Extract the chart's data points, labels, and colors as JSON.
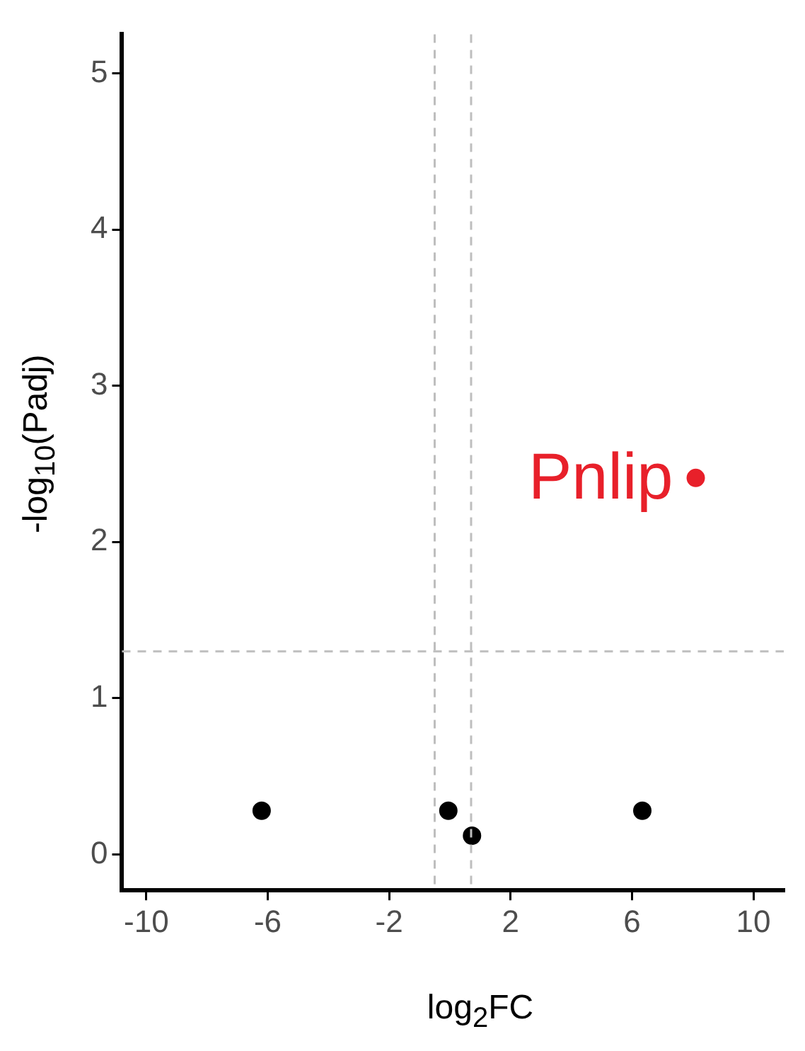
{
  "chart_data": {
    "type": "scatter",
    "xlabel": "log$_{2}$FC",
    "ylabel": "-log$_{10}$(Padj)",
    "series": [
      {
        "color": "#000000",
        "x": [
          -6.2,
          -0.05,
          0.73,
          6.34
        ],
        "values": [
          0.28,
          0.28,
          0.12,
          0.28
        ]
      },
      {
        "color": "#e8202a",
        "x": [
          8.1
        ],
        "values": [
          2.41
        ]
      }
    ],
    "xlim": [
      -10.8,
      11
    ],
    "xticks": [
      -10,
      -6,
      -2,
      2,
      6,
      10
    ],
    "ylim": [
      -0.23,
      5.25
    ],
    "yticks": [
      0,
      1,
      2,
      3,
      4,
      5
    ],
    "ref_lines": [
      {
        "axis": "x",
        "value": -0.5,
        "line_style": "dashed",
        "color": "#bebebe"
      },
      {
        "axis": "x",
        "value": 0.7,
        "line_style": "dashed",
        "color": "#bebebe"
      },
      {
        "axis": "y",
        "value": 1.3,
        "line_style": "dashed",
        "color": "#bebebe"
      }
    ],
    "annotations": [
      {
        "text": "Pnlip",
        "x": 8.1,
        "y": 2.41
      }
    ],
    "grid": false,
    "legend": false,
    "marker": "circle"
  }
}
